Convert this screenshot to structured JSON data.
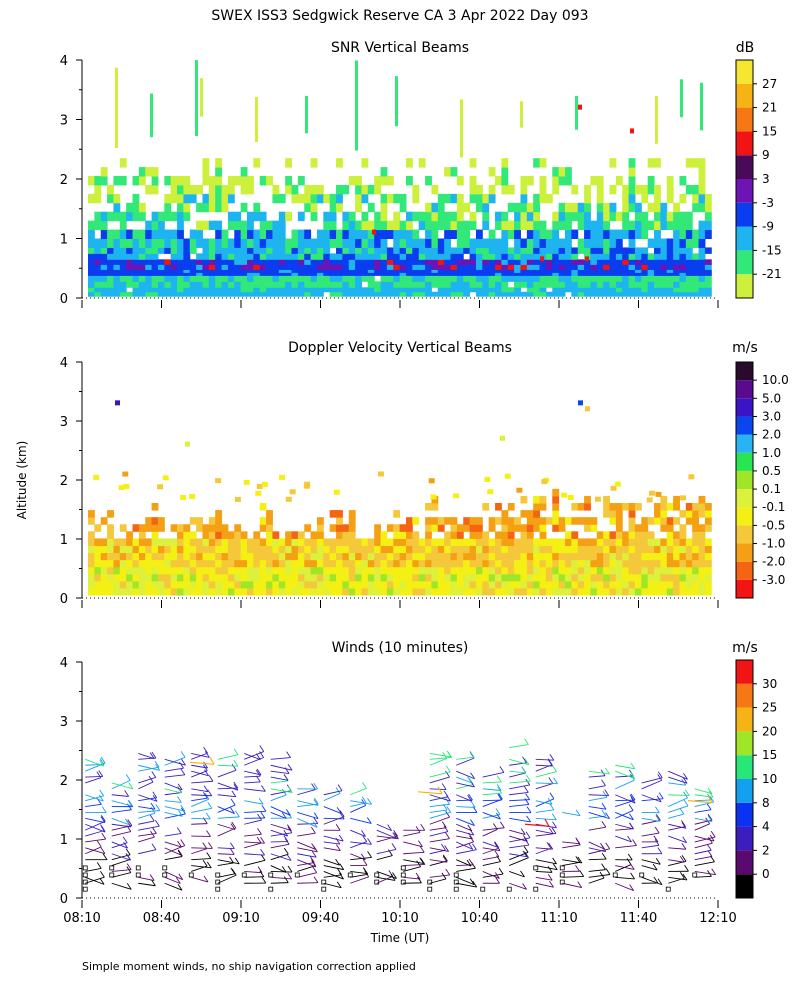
{
  "page": {
    "title": "SWEX ISS3 Sedgwick Reserve CA   3 Apr 2022 Day 093",
    "ylabel": "Altitude (km)",
    "xlabel": "Time (UT)",
    "footnote": "Simple moment winds, no ship navigation correction applied"
  },
  "chart_data": [
    {
      "type": "heatmap",
      "title": "SNR Vertical Beams",
      "ylabel": "Altitude (km)",
      "ylim": [
        0,
        4
      ],
      "yticks": [
        "0",
        "1",
        "2",
        "3",
        "4"
      ],
      "xlim_minutes_since_0810": [
        0,
        240
      ],
      "colorbar": {
        "unit": "dB",
        "labels": [
          "-21",
          "-15",
          "-9",
          "-3",
          "3",
          "9",
          "15",
          "21",
          "27"
        ],
        "colors": [
          "#cdf03c",
          "#32e878",
          "#1eb4f0",
          "#0a3cf0",
          "#6e14b4",
          "#4a0a5a",
          "#f01414",
          "#f57814",
          "#f5b414",
          "#f5e632"
        ]
      },
      "layers": [
        {
          "alt": [
            0.0,
            0.3
          ],
          "level": "-9"
        },
        {
          "alt": [
            0.3,
            0.45
          ],
          "level": "-3"
        },
        {
          "alt": [
            0.45,
            0.7
          ],
          "level": "-3"
        },
        {
          "alt": [
            0.7,
            1.4
          ],
          "level": "-9"
        },
        {
          "alt": [
            1.4,
            1.9
          ],
          "level": "-15"
        },
        {
          "alt": [
            1.9,
            2.2
          ],
          "level": "-21"
        }
      ]
    },
    {
      "type": "heatmap",
      "title": "Doppler Velocity Vertical Beams",
      "ylim": [
        0,
        4
      ],
      "yticks": [
        "0",
        "1",
        "2",
        "3",
        "4"
      ],
      "colorbar": {
        "unit": "m/s",
        "labels": [
          "-3.0",
          "-2.0",
          "-1.0",
          "-0.5",
          "-0.1",
          "0.1",
          "0.5",
          "1.0",
          "2.0",
          "3.0",
          "5.0",
          "10.0"
        ],
        "colors": [
          "#f51414",
          "#f56414",
          "#f5a014",
          "#f5c83c",
          "#f5f014",
          "#dcf03c",
          "#a0e628",
          "#28e650",
          "#28b4f0",
          "#0a46f0",
          "#3c14c8",
          "#5a0a8c",
          "#2a0a2a"
        ]
      }
    },
    {
      "type": "wind_barbs",
      "title": "Winds (10 minutes)",
      "ylim": [
        0,
        4
      ],
      "yticks": [
        "0",
        "1",
        "2",
        "3",
        "4"
      ],
      "xticks": [
        "08:10",
        "08:40",
        "09:10",
        "09:40",
        "10:10",
        "10:40",
        "11:10",
        "11:40",
        "12:10"
      ],
      "colorbar": {
        "unit": "m/s",
        "labels": [
          "0",
          "2",
          "4",
          "8",
          "10",
          "15",
          "20",
          "25",
          "30"
        ],
        "colors": [
          "#000000",
          "#5a0a6e",
          "#3c1ebe",
          "#0a32f0",
          "#14a0f0",
          "#28e678",
          "#a0e628",
          "#f5b414",
          "#f57814",
          "#f01414"
        ]
      },
      "profile_times_minutes_since_0810": [
        5,
        15,
        25,
        35,
        45,
        55,
        65,
        75,
        85,
        95,
        105,
        115,
        125,
        135,
        145,
        155,
        165,
        175,
        185,
        195,
        205,
        215,
        225,
        235
      ],
      "profile_tops_km": [
        2.4,
        2.0,
        2.5,
        2.4,
        2.5,
        2.4,
        2.5,
        2.5,
        1.9,
        1.8,
        1.9,
        1.3,
        1.2,
        2.5,
        2.4,
        2.1,
        2.6,
        2.4,
        1.5,
        2.3,
        2.3,
        2.0,
        2.2,
        1.9
      ]
    }
  ]
}
